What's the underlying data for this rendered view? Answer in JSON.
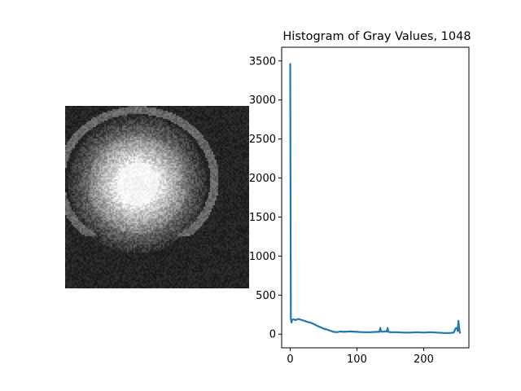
{
  "chart_data": {
    "type": "line",
    "title": "Histogram of Gray Values, 1048",
    "xlabel": "",
    "ylabel": "",
    "xlim": [
      -12.75,
      267.75
    ],
    "ylim": [
      -175,
      3675
    ],
    "xticks": [
      0,
      100,
      200
    ],
    "xtick_labels": [
      "0",
      "100",
      "200"
    ],
    "yticks": [
      0,
      500,
      1000,
      1500,
      2000,
      2500,
      3000,
      3500
    ],
    "ytick_labels": [
      "0",
      "500",
      "1000",
      "1500",
      "2000",
      "2500",
      "3000",
      "3500"
    ],
    "grid": false,
    "legend": "none",
    "series_color": "#1f77b4",
    "series": [
      {
        "x": [
          0,
          1,
          2,
          3,
          5,
          8,
          12,
          16,
          20,
          25,
          30,
          35,
          40,
          45,
          50,
          55,
          60,
          65,
          70,
          75,
          80,
          90,
          100,
          110,
          120,
          130,
          134,
          135,
          136,
          138,
          140,
          145,
          146,
          147,
          148,
          150,
          160,
          170,
          180,
          190,
          200,
          210,
          220,
          230,
          240,
          245,
          248,
          250,
          251,
          252,
          253,
          254,
          255
        ],
        "y": [
          3470,
          200,
          150,
          185,
          190,
          180,
          195,
          185,
          175,
          160,
          150,
          130,
          110,
          90,
          70,
          60,
          45,
          30,
          25,
          35,
          30,
          35,
          30,
          25,
          25,
          30,
          30,
          80,
          40,
          30,
          35,
          35,
          80,
          30,
          30,
          25,
          25,
          20,
          20,
          25,
          20,
          25,
          20,
          15,
          15,
          20,
          75,
          80,
          40,
          170,
          90,
          30,
          10
        ]
      }
    ]
  },
  "image_panel": {
    "description_icon": "grayscale-image"
  }
}
